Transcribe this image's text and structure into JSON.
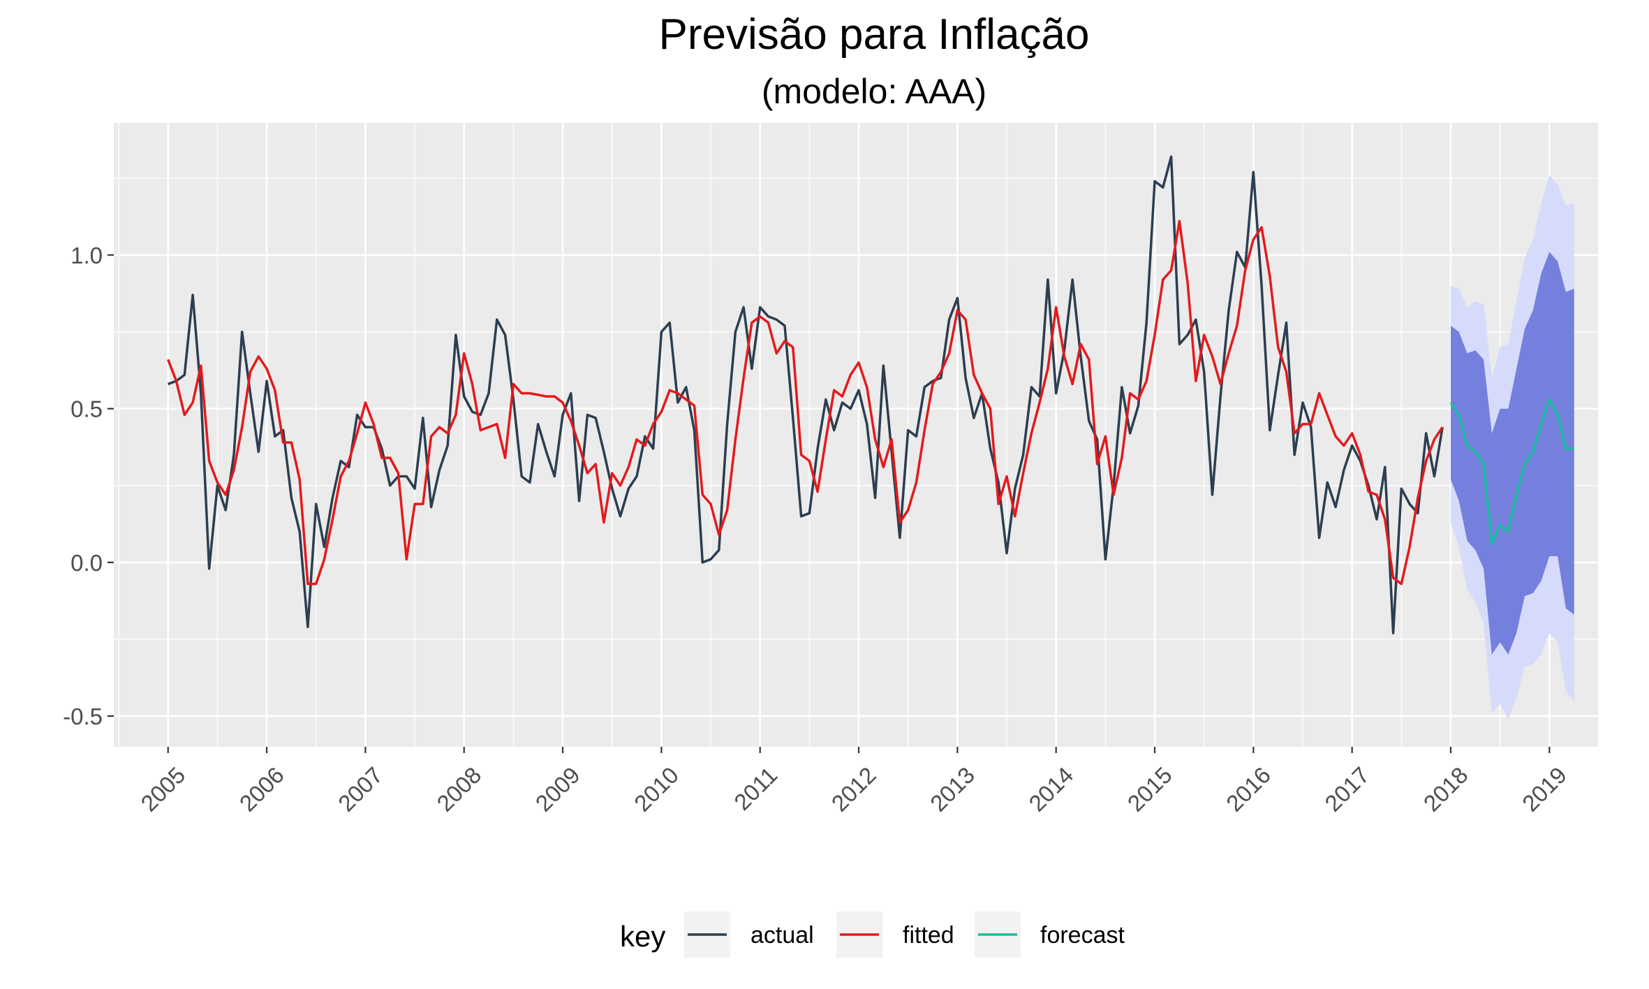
{
  "chart_data": {
    "type": "line",
    "title": "Previsão para Inflação",
    "subtitle": "(modelo: AAA)",
    "xlabel": "",
    "ylabel": "",
    "xlim": [
      2004.45,
      2019.5
    ],
    "ylim": [
      -0.6,
      1.43
    ],
    "grid": true,
    "x_ticks": [
      2005,
      2006,
      2007,
      2008,
      2009,
      2010,
      2011,
      2012,
      2013,
      2014,
      2015,
      2016,
      2017,
      2018,
      2019
    ],
    "x_tick_labels": [
      "2005",
      "2006",
      "2007",
      "2008",
      "2009",
      "2010",
      "2011",
      "2012",
      "2013",
      "2014",
      "2015",
      "2016",
      "2017",
      "2018",
      "2019"
    ],
    "y_ticks": [
      -0.5,
      0.0,
      0.5,
      1.0
    ],
    "y_tick_labels": [
      "-0.5",
      "0.0",
      "0.5",
      "1.0"
    ],
    "legend": {
      "title": "key",
      "placement": "bottom",
      "entries": [
        "actual",
        "fitted",
        "forecast"
      ]
    },
    "colors": {
      "actual": "#2c3e50",
      "fitted": "#e31a1c",
      "forecast": "#18bc9c",
      "band80": "#7580de",
      "band95": "#d6dbfb",
      "panel": "#ebebeb",
      "grid": "#ffffff"
    },
    "start": 2005,
    "step": 0.0833333,
    "series": [
      {
        "name": "actual",
        "values": [
          0.58,
          0.59,
          0.61,
          0.87,
          0.55,
          -0.02,
          0.25,
          0.17,
          0.35,
          0.75,
          0.55,
          0.36,
          0.59,
          0.41,
          0.43,
          0.21,
          0.1,
          -0.21,
          0.19,
          0.05,
          0.21,
          0.33,
          0.31,
          0.48,
          0.44,
          0.44,
          0.37,
          0.25,
          0.28,
          0.28,
          0.24,
          0.47,
          0.18,
          0.3,
          0.38,
          0.74,
          0.54,
          0.49,
          0.48,
          0.55,
          0.79,
          0.74,
          0.53,
          0.28,
          0.26,
          0.45,
          0.36,
          0.28,
          0.48,
          0.55,
          0.2,
          0.48,
          0.47,
          0.36,
          0.24,
          0.15,
          0.24,
          0.28,
          0.41,
          0.37,
          0.75,
          0.78,
          0.52,
          0.57,
          0.43,
          0.0,
          0.01,
          0.04,
          0.45,
          0.75,
          0.83,
          0.63,
          0.83,
          0.8,
          0.79,
          0.77,
          0.47,
          0.15,
          0.16,
          0.37,
          0.53,
          0.43,
          0.52,
          0.5,
          0.56,
          0.45,
          0.21,
          0.64,
          0.36,
          0.08,
          0.43,
          0.41,
          0.57,
          0.59,
          0.6,
          0.79,
          0.86,
          0.6,
          0.47,
          0.55,
          0.37,
          0.26,
          0.03,
          0.24,
          0.35,
          0.57,
          0.54,
          0.92,
          0.55,
          0.69,
          0.92,
          0.67,
          0.46,
          0.4,
          0.01,
          0.25,
          0.57,
          0.42,
          0.51,
          0.78,
          1.24,
          1.22,
          1.32,
          0.71,
          0.74,
          0.79,
          0.62,
          0.22,
          0.54,
          0.82,
          1.01,
          0.96,
          1.27,
          0.9,
          0.43,
          0.61,
          0.78,
          0.35,
          0.52,
          0.44,
          0.08,
          0.26,
          0.18,
          0.3,
          0.38,
          0.33,
          0.25,
          0.14,
          0.31,
          -0.23,
          0.24,
          0.19,
          0.16,
          0.42,
          0.28,
          0.44
        ]
      },
      {
        "name": "fitted",
        "values": [
          0.66,
          0.59,
          0.48,
          0.52,
          0.64,
          0.33,
          0.26,
          0.22,
          0.3,
          0.44,
          0.62,
          0.67,
          0.63,
          0.56,
          0.39,
          0.39,
          0.27,
          -0.07,
          -0.07,
          0.01,
          0.14,
          0.28,
          0.33,
          0.42,
          0.52,
          0.45,
          0.34,
          0.34,
          0.29,
          0.01,
          0.19,
          0.19,
          0.41,
          0.44,
          0.42,
          0.48,
          0.68,
          0.58,
          0.43,
          0.44,
          0.45,
          0.34,
          0.58,
          0.55,
          0.55,
          0.545,
          0.54,
          0.54,
          0.52,
          0.46,
          0.38,
          0.29,
          0.32,
          0.13,
          0.29,
          0.25,
          0.31,
          0.4,
          0.38,
          0.45,
          0.49,
          0.56,
          0.55,
          0.53,
          0.51,
          0.22,
          0.19,
          0.09,
          0.17,
          0.4,
          0.6,
          0.78,
          0.8,
          0.78,
          0.68,
          0.72,
          0.7,
          0.35,
          0.33,
          0.23,
          0.4,
          0.56,
          0.54,
          0.61,
          0.65,
          0.57,
          0.4,
          0.31,
          0.4,
          0.13,
          0.17,
          0.26,
          0.43,
          0.58,
          0.62,
          0.68,
          0.82,
          0.79,
          0.61,
          0.55,
          0.5,
          0.19,
          0.28,
          0.15,
          0.29,
          0.42,
          0.52,
          0.63,
          0.83,
          0.67,
          0.58,
          0.71,
          0.66,
          0.32,
          0.41,
          0.22,
          0.34,
          0.55,
          0.53,
          0.59,
          0.74,
          0.92,
          0.95,
          1.11,
          0.91,
          0.59,
          0.74,
          0.67,
          0.58,
          0.68,
          0.77,
          0.95,
          1.05,
          1.09,
          0.93,
          0.7,
          0.62,
          0.42,
          0.45,
          0.45,
          0.55,
          0.48,
          0.41,
          0.38,
          0.42,
          0.35,
          0.23,
          0.22,
          0.14,
          -0.05,
          -0.07,
          0.05,
          0.21,
          0.33,
          0.4,
          0.44
        ]
      },
      {
        "name": "forecast",
        "start": 2018,
        "values": [
          0.52,
          0.48,
          0.38,
          0.36,
          0.32,
          0.06,
          0.12,
          0.1,
          0.22,
          0.32,
          0.36,
          0.45,
          0.53,
          0.48,
          0.37,
          0.37
        ],
        "lo80": [
          0.27,
          0.2,
          0.07,
          0.04,
          -0.02,
          -0.3,
          -0.26,
          -0.3,
          -0.23,
          -0.11,
          -0.1,
          -0.06,
          0.02,
          0.02,
          -0.15,
          -0.17
        ],
        "hi80": [
          0.77,
          0.75,
          0.68,
          0.69,
          0.66,
          0.42,
          0.5,
          0.5,
          0.63,
          0.76,
          0.82,
          0.94,
          1.01,
          0.98,
          0.88,
          0.89
        ],
        "lo95": [
          0.13,
          0.05,
          -0.09,
          -0.13,
          -0.2,
          -0.49,
          -0.46,
          -0.51,
          -0.44,
          -0.34,
          -0.33,
          -0.3,
          -0.23,
          -0.26,
          -0.42,
          -0.45
        ],
        "hi95": [
          0.9,
          0.89,
          0.83,
          0.85,
          0.84,
          0.6,
          0.7,
          0.71,
          0.85,
          0.99,
          1.05,
          1.17,
          1.26,
          1.23,
          1.16,
          1.17
        ]
      }
    ]
  }
}
